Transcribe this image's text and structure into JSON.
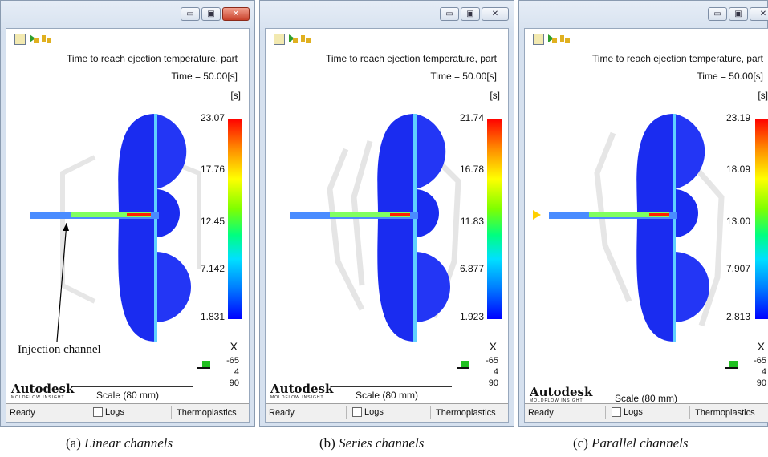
{
  "windows": [
    {
      "result_title": "Time to reach ejection temperature, part",
      "time_label": "Time = 50.00[s]",
      "unit": "[s]",
      "scale_ticks": [
        "23.07",
        "17.76",
        "12.45",
        "7.142",
        "1.831"
      ],
      "axis": {
        "x": "X",
        "v1": "-65",
        "v2": "4",
        "v3": "90"
      },
      "brand": "Autodesk",
      "brand_sub": "MOLDFLOW INSIGHT",
      "scale_text": "Scale (80 mm)",
      "status": {
        "ready": "Ready",
        "logs": "Logs",
        "material": "Thermoplastics"
      },
      "caption_prefix": "(a) ",
      "caption_text": "Linear channels",
      "active": true
    },
    {
      "result_title": "Time to reach ejection temperature, part",
      "time_label": "Time = 50.00[s]",
      "unit": "[s]",
      "scale_ticks": [
        "21.74",
        "16.78",
        "11.83",
        "6.877",
        "1.923"
      ],
      "axis": {
        "x": "X",
        "v1": "-65",
        "v2": "4",
        "v3": "90"
      },
      "brand": "Autodesk",
      "brand_sub": "MOLDFLOW INSIGHT",
      "scale_text": "Scale (80 mm)",
      "status": {
        "ready": "Ready",
        "logs": "Logs",
        "material": "Thermoplastics"
      },
      "caption_prefix": "(b) ",
      "caption_text": "Series channels",
      "active": false
    },
    {
      "result_title": "Time to reach ejection temperature, part",
      "time_label": "Time = 50.00[s]",
      "unit": "[s]",
      "scale_ticks": [
        "23.19",
        "18.09",
        "13.00",
        "7.907",
        "2.813"
      ],
      "axis": {
        "x": "X",
        "v1": "-65",
        "v2": "4",
        "v3": "90"
      },
      "brand": "Autodesk",
      "brand_sub": "MOLDFLOW INSIGHT",
      "scale_text": "Scale (80 mm)",
      "status": {
        "ready": "Ready",
        "logs": "Logs",
        "material": "Thermoplastics"
      },
      "caption_prefix": "(c) ",
      "caption_text": "Parallel channels",
      "active": false
    }
  ],
  "annotation": "Injection channel",
  "colors": {
    "part_blue": "#1a2cf0",
    "hot_red": "#ff2000",
    "channel_green": "#60e060",
    "frame": "#d6e1ef"
  }
}
